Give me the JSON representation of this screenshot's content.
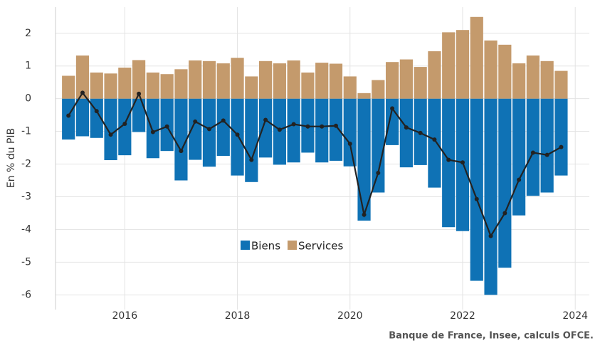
{
  "chart_data": {
    "type": "bar",
    "ylabel": "En % du PIB",
    "source": "Banque de France, Insee, calculs OFCE.",
    "x": [
      2015,
      2015.25,
      2015.5,
      2015.75,
      2016,
      2016.25,
      2016.5,
      2016.75,
      2017,
      2017.25,
      2017.5,
      2017.75,
      2018,
      2018.25,
      2018.5,
      2018.75,
      2019,
      2019.25,
      2019.5,
      2019.75,
      2020,
      2020.25,
      2020.5,
      2020.75,
      2021,
      2021.25,
      2021.5,
      2021.75,
      2022,
      2022.25,
      2022.5,
      2022.75,
      2023,
      2023.25,
      2023.5,
      2023.75
    ],
    "series": [
      {
        "name": "Biens",
        "color": "#0f72b5",
        "values": [
          -1.25,
          -1.15,
          -1.2,
          -1.88,
          -1.73,
          -1.02,
          -1.82,
          -1.6,
          -2.5,
          -1.87,
          -2.08,
          -1.75,
          -2.35,
          -2.55,
          -1.8,
          -2.02,
          -1.95,
          -1.65,
          -1.95,
          -1.9,
          -2.07,
          -3.73,
          -2.87,
          -1.42,
          -2.1,
          -2.03,
          -2.72,
          -3.93,
          -4.05,
          -5.57,
          -6.0,
          -5.17,
          -3.57,
          -2.97,
          -2.87,
          -2.35
        ]
      },
      {
        "name": "Services",
        "color": "#c49a6c",
        "values": [
          0.7,
          1.32,
          0.8,
          0.77,
          0.95,
          1.18,
          0.8,
          0.75,
          0.9,
          1.17,
          1.15,
          1.08,
          1.25,
          0.68,
          1.15,
          1.08,
          1.17,
          0.8,
          1.1,
          1.07,
          0.68,
          0.17,
          0.57,
          1.12,
          1.2,
          0.97,
          1.45,
          2.03,
          2.1,
          2.5,
          1.78,
          1.65,
          1.08,
          1.32,
          1.15,
          0.85
        ]
      },
      {
        "type": "line",
        "color": "#222222",
        "values": [
          -0.52,
          0.18,
          -0.38,
          -1.1,
          -0.77,
          0.15,
          -1.02,
          -0.85,
          -1.6,
          -0.7,
          -0.93,
          -0.67,
          -1.1,
          -1.87,
          -0.65,
          -0.95,
          -0.78,
          -0.85,
          -0.85,
          -0.83,
          -1.38,
          -3.55,
          -2.27,
          -0.3,
          -0.88,
          -1.05,
          -1.25,
          -1.87,
          -1.95,
          -3.07,
          -4.2,
          -3.5,
          -2.48,
          -1.65,
          -1.72,
          -1.48
        ]
      }
    ],
    "xlim": [
      2014.77,
      2024.25
    ],
    "xticks": [
      2016,
      2018,
      2020,
      2022,
      2024
    ],
    "ylim": [
      -6.45,
      2.8
    ],
    "yticks": [
      2,
      1,
      0,
      -1,
      -2,
      -3,
      -4,
      -5,
      -6
    ],
    "grid": true
  }
}
